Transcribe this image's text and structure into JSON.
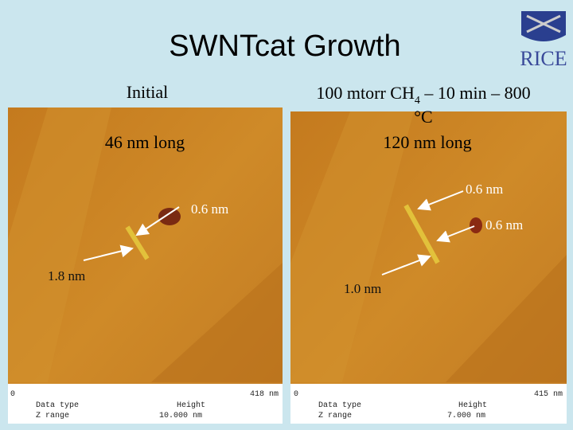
{
  "header": {
    "title": "SWNTcat Growth",
    "logo": "RICE"
  },
  "left_panel": {
    "heading": "Initial",
    "length": "46 nm long",
    "annotations": [
      "0.6 nm",
      "1.8 nm"
    ],
    "scale_start": "0",
    "scale_end": "418 nm",
    "info": [
      "Data type",
      "Height",
      "Z range",
      "10.000 nm"
    ]
  },
  "right_panel": {
    "heading_parts": [
      "100 mtorr CH",
      "4",
      " – 10 min – 800",
      "°C"
    ],
    "length": "120 nm long",
    "annotations": [
      "0.6 nm",
      "0.6 nm",
      "1.0 nm"
    ],
    "scale_start": "0",
    "scale_end": "415 nm",
    "info": [
      "Data type",
      "Height",
      "Z range",
      "7.000 nm"
    ]
  }
}
